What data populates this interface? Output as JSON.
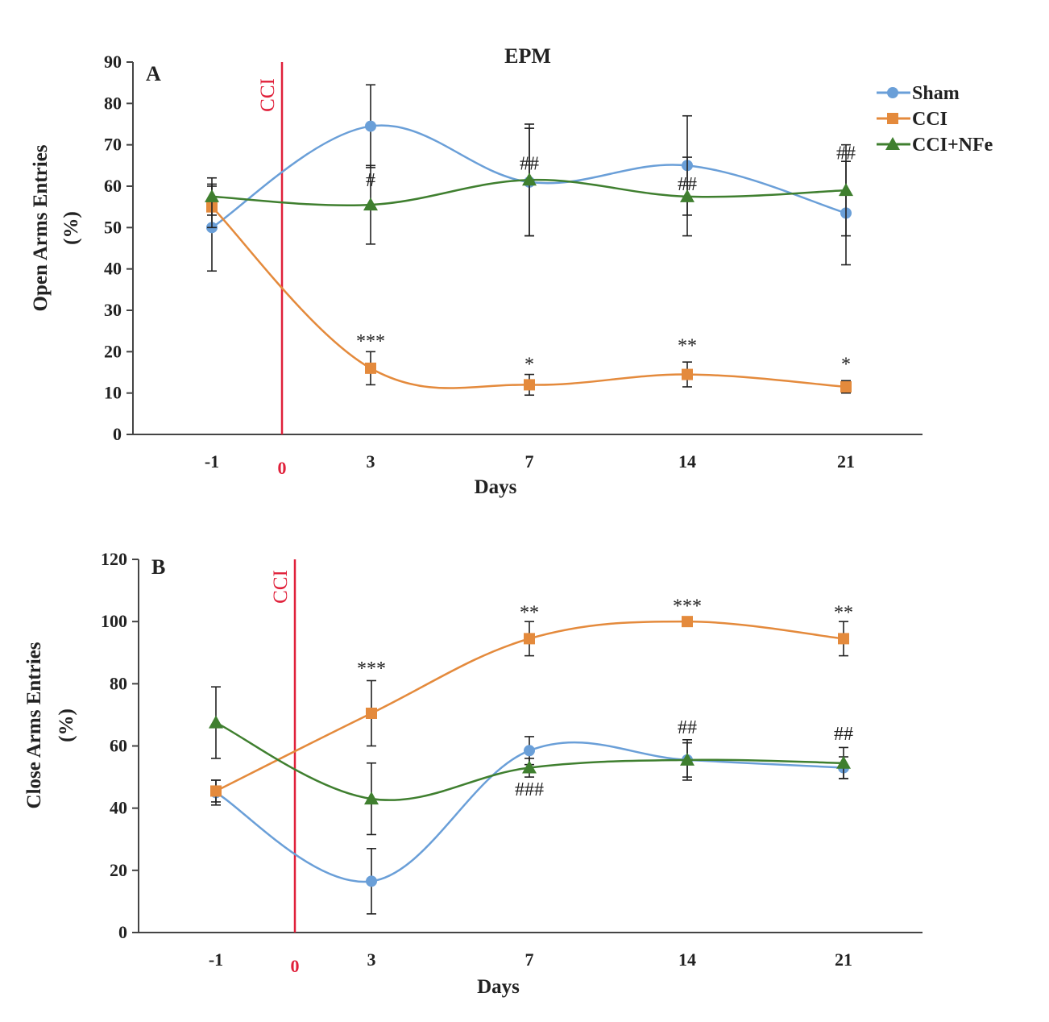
{
  "figure": {
    "title": "EPM"
  },
  "legend": {
    "entries": [
      {
        "label": "Sham",
        "color": "#6a9fd8",
        "marker": "circle"
      },
      {
        "label": "CCI",
        "color": "#e48a3c",
        "marker": "square"
      },
      {
        "label": "CCI+NFe",
        "color": "#3f7f2f",
        "marker": "triangle"
      }
    ]
  },
  "chart_data": [
    {
      "panel": "A",
      "type": "line",
      "title": "EPM",
      "xlabel": "Days",
      "ylabel": "Open Arms Entries",
      "ylabel_unit": "(%)",
      "categories": [
        "-1",
        "0",
        "3",
        "7",
        "14",
        "21"
      ],
      "x": [
        -1,
        3,
        7,
        14,
        21
      ],
      "ylim": [
        0,
        90
      ],
      "yticks": [
        0,
        10,
        20,
        30,
        40,
        50,
        60,
        70,
        80,
        90
      ],
      "grid": false,
      "legend_position": "top-right",
      "event_marker": {
        "label": "CCI",
        "at": "0",
        "color": "#e0203a"
      },
      "series": [
        {
          "name": "Sham",
          "values": [
            50,
            74.5,
            61,
            65,
            53.5
          ],
          "errors": [
            10.5,
            10,
            13,
            12,
            12.5
          ]
        },
        {
          "name": "CCI",
          "values": [
            55,
            16,
            12,
            14.5,
            11.5
          ],
          "errors": [
            5,
            4,
            2.5,
            3,
            1.5
          ]
        },
        {
          "name": "CCI+NFe",
          "values": [
            57.5,
            55.5,
            61.5,
            57.5,
            59
          ],
          "errors": [
            4.5,
            9.5,
            13.5,
            9.5,
            11
          ]
        }
      ],
      "annotations": [
        {
          "x": 3,
          "text": "#",
          "y": 60
        },
        {
          "x": 3,
          "text": "***",
          "y": 21
        },
        {
          "x": 7,
          "text": "##",
          "y": 64
        },
        {
          "x": 7,
          "text": "*",
          "y": 15.5
        },
        {
          "x": 14,
          "text": "##",
          "y": 59
        },
        {
          "x": 14,
          "text": "**",
          "y": 20
        },
        {
          "x": 21,
          "text": "##",
          "y": 66.5
        },
        {
          "x": 21,
          "text": "*",
          "y": 15.5
        }
      ]
    },
    {
      "panel": "B",
      "type": "line",
      "xlabel": "Days",
      "ylabel": "Close Arms Entries",
      "ylabel_unit": "(%)",
      "categories": [
        "-1",
        "0",
        "3",
        "7",
        "14",
        "21"
      ],
      "x": [
        -1,
        3,
        7,
        14,
        21
      ],
      "ylim": [
        0,
        120
      ],
      "yticks": [
        0,
        20,
        40,
        60,
        80,
        100,
        120
      ],
      "grid": false,
      "event_marker": {
        "label": "CCI",
        "at": "0",
        "color": "#e0203a"
      },
      "series": [
        {
          "name": "Sham",
          "values": [
            45,
            16.5,
            58.5,
            55.5,
            53
          ],
          "errors": [
            4,
            10.5,
            4.5,
            5.5,
            3.5
          ]
        },
        {
          "name": "CCI",
          "values": [
            45.5,
            70.5,
            94.5,
            100,
            94.5
          ],
          "errors": [
            3.5,
            10.5,
            5.5,
            0,
            5.5
          ]
        },
        {
          "name": "CCI+NFe",
          "values": [
            67.5,
            43,
            53,
            55.5,
            54.5
          ],
          "errors": [
            11.5,
            11.5,
            3,
            6.5,
            5
          ]
        }
      ],
      "annotations": [
        {
          "x": 3,
          "text": "***",
          "y": 83
        },
        {
          "x": 7,
          "text": "**",
          "y": 101
        },
        {
          "x": 7,
          "text": "###",
          "y": 44
        },
        {
          "x": 14,
          "text": "***",
          "y": 103
        },
        {
          "x": 14,
          "text": "##",
          "y": 64
        },
        {
          "x": 21,
          "text": "**",
          "y": 101
        },
        {
          "x": 21,
          "text": "##",
          "y": 62
        }
      ]
    }
  ]
}
